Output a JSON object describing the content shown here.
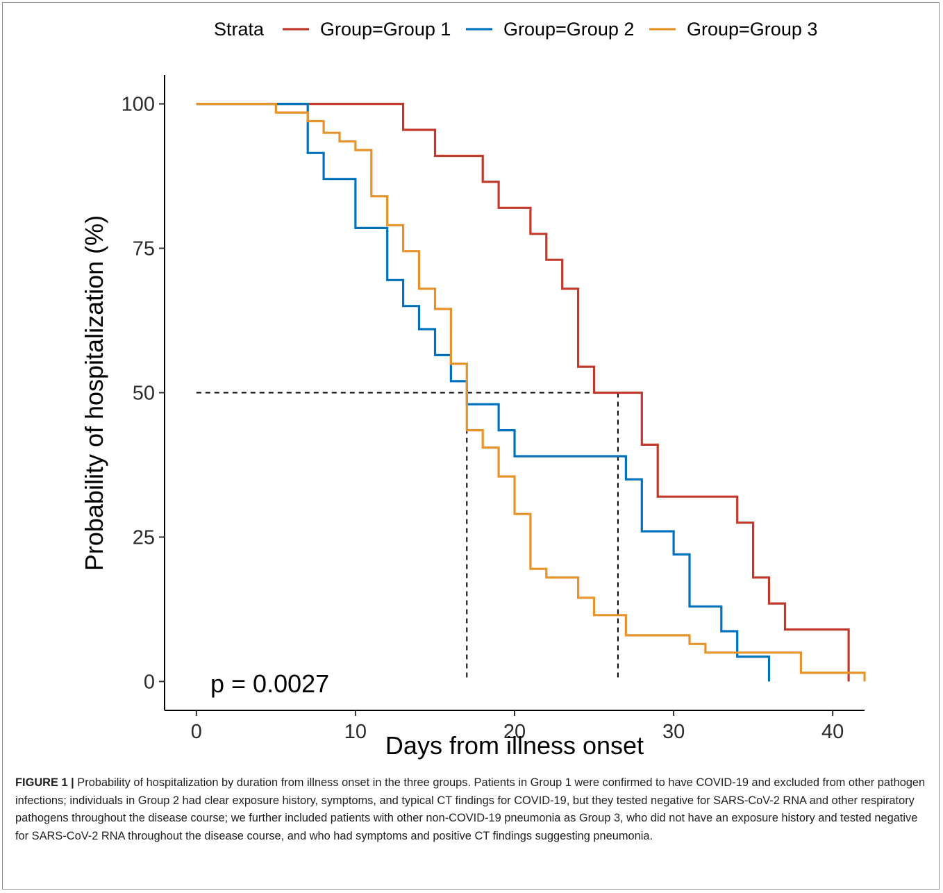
{
  "chart_data": {
    "type": "line",
    "step": true,
    "xlabel": "Days from illness onset",
    "ylabel": "Probability of hospitalization (%)",
    "xlim": [
      -2,
      42
    ],
    "ylim": [
      -5,
      105
    ],
    "x_ticks": [
      0,
      10,
      20,
      30,
      40
    ],
    "y_ticks": [
      0,
      25,
      50,
      75,
      100
    ],
    "grid": false,
    "legend": {
      "title": "Strata",
      "position": "top"
    },
    "annotation": "p = 0.0027",
    "median_lines": [
      {
        "from": [
          0,
          50
        ],
        "to": [
          26.5,
          50
        ]
      },
      {
        "from": [
          17,
          50
        ],
        "to": [
          17,
          0
        ]
      },
      {
        "from": [
          26.5,
          50
        ],
        "to": [
          26.5,
          0
        ]
      }
    ],
    "series": [
      {
        "name": "Group=Group 1",
        "color": "#c0392b",
        "x": [
          0,
          13,
          15,
          18,
          19,
          21,
          22,
          23,
          24,
          25,
          28,
          29,
          34,
          35,
          36,
          37,
          41,
          41
        ],
        "y": [
          100,
          95.5,
          91,
          86.5,
          82,
          77.5,
          73,
          68,
          54.5,
          50,
          41,
          32,
          27.5,
          18,
          13.5,
          9,
          9,
          0
        ]
      },
      {
        "name": "Group=Group 2",
        "color": "#0072bd",
        "x": [
          0,
          7,
          8,
          10,
          12,
          13,
          14,
          15,
          16,
          17,
          19,
          20,
          27,
          28,
          30,
          31,
          33,
          34,
          36,
          36
        ],
        "y": [
          100,
          91.5,
          87,
          78.5,
          69.5,
          65,
          61,
          56.5,
          52,
          48,
          43.5,
          39,
          35,
          26,
          22,
          13,
          8.7,
          4.3,
          4.3,
          0
        ]
      },
      {
        "name": "Group=Group 3",
        "color": "#e8922a",
        "x": [
          0,
          5,
          7,
          8,
          9,
          10,
          11,
          12,
          13,
          14,
          15,
          16,
          17,
          18,
          19,
          20,
          21,
          22,
          24,
          25,
          27,
          31,
          32,
          38,
          42,
          42
        ],
        "y": [
          100,
          98.5,
          97,
          95,
          93.5,
          92,
          84,
          79,
          74.5,
          68,
          64.5,
          55,
          43.5,
          40.5,
          35.5,
          29,
          19.5,
          18,
          14.5,
          11.5,
          8,
          6.5,
          5,
          1.5,
          1.5,
          0
        ]
      }
    ]
  },
  "caption": {
    "label": "FIGURE 1 |",
    "text": "Probability of hospitalization by duration from illness onset in the three groups. Patients in Group 1 were confirmed to have COVID-19 and excluded from other pathogen infections; individuals in Group 2 had clear exposure history, symptoms, and typical CT findings for COVID-19, but they tested negative for SARS-CoV-2 RNA and other respiratory pathogens throughout the disease course; we further included patients with other non-COVID-19 pneumonia as Group 3, who did not have an exposure history and tested negative for SARS-CoV-2 RNA throughout the disease course, and who had symptoms and positive CT findings suggesting pneumonia."
  }
}
